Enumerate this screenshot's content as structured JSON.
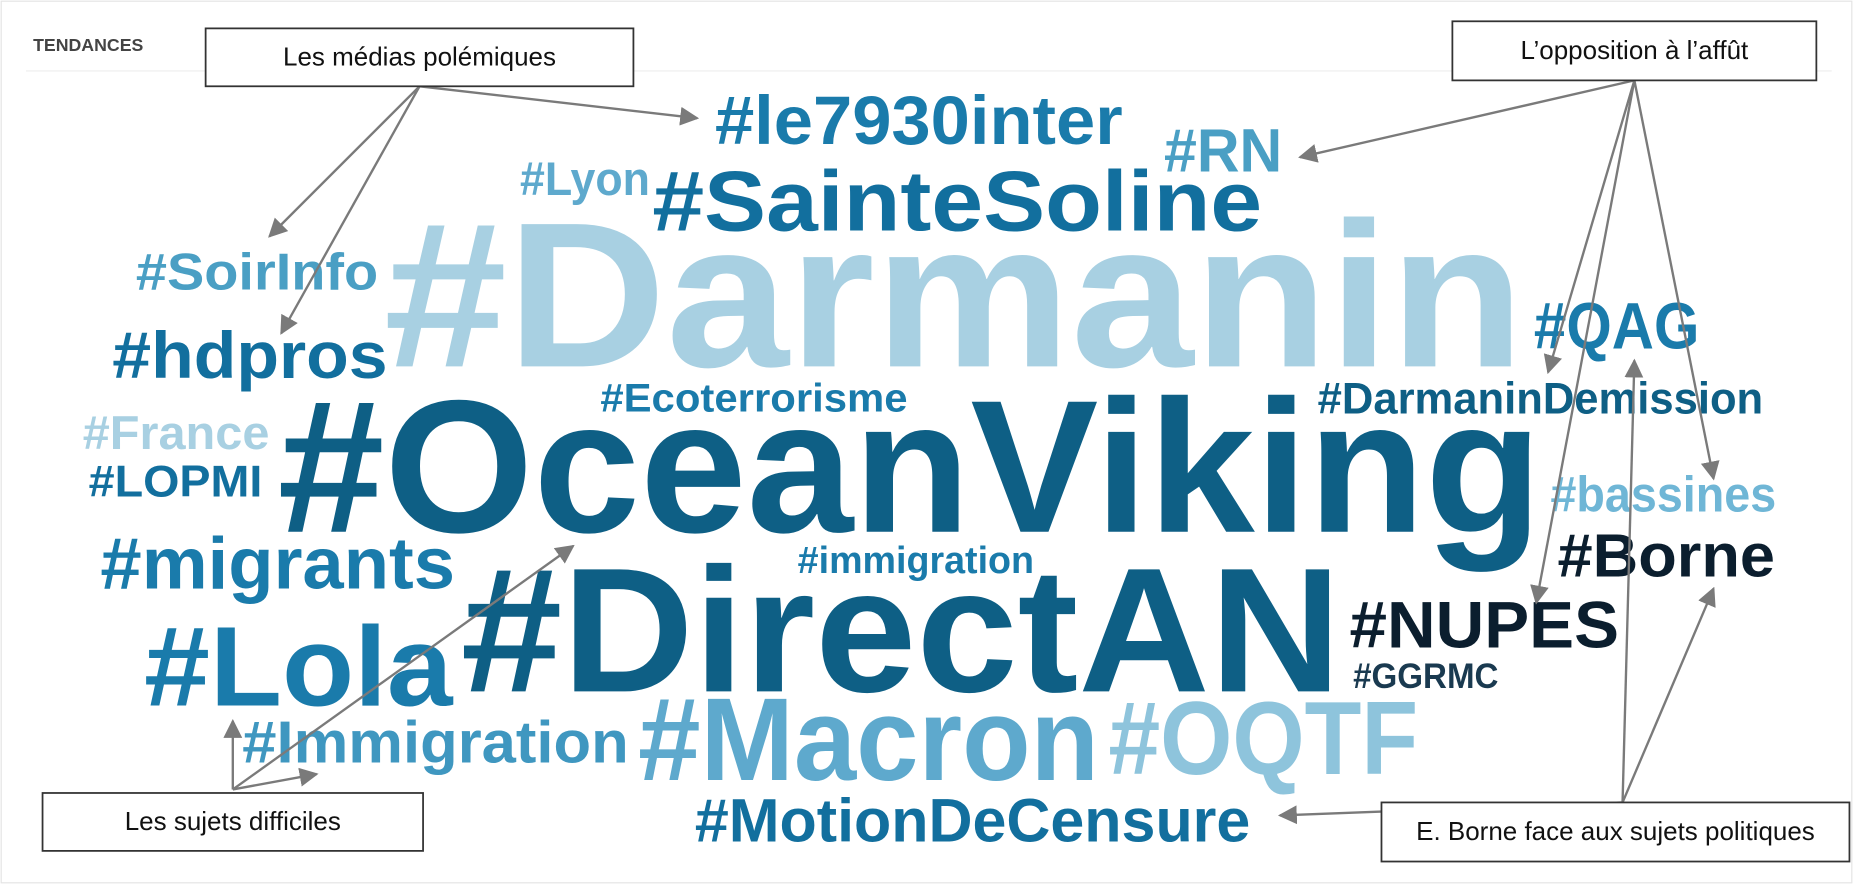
{
  "header": {
    "title": "TENDANCES"
  },
  "words": [
    "#le7930inter",
    "#RN",
    "#Lyon",
    "#SainteSoline",
    "#Darmanin",
    "#SoirInfo",
    "#hdpros",
    "#QAG",
    "#Ecoterrorisme",
    "#DarmaninDemission",
    "#France",
    "#LOPMI",
    "#OceanViking",
    "#bassines",
    "#migrants",
    "#immigration",
    "#Borne",
    "#NUPES",
    "#DirectAN",
    "#GGRMC",
    "#Lola",
    "#Immigration",
    "#Macron",
    "#OQTF",
    "#MotionDeCensure"
  ],
  "annotations": [
    {
      "label": "Les médias polémiques"
    },
    {
      "label": "L’opposition à l’affût"
    },
    {
      "label": "Les sujets difficiles"
    },
    {
      "label": "E. Borne face aux sujets politiques"
    }
  ]
}
